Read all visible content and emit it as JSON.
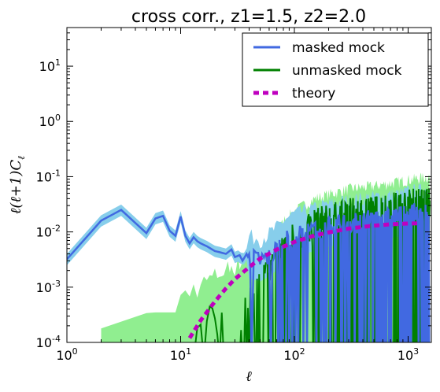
{
  "chart_data": {
    "type": "line",
    "title": "cross corr., z1=1.5, z2=2.0",
    "xlabel": "ℓ",
    "ylabel": "ℓ(ℓ+1)C",
    "ylabel_sub": "ℓ",
    "xscale": "log",
    "yscale": "log",
    "xlim": [
      1,
      1600
    ],
    "ylim": [
      0.0001,
      50
    ],
    "x_ticks": [
      {
        "value": 1,
        "base": "10",
        "exp": "0"
      },
      {
        "value": 10,
        "base": "10",
        "exp": "1"
      },
      {
        "value": 100,
        "base": "10",
        "exp": "2"
      },
      {
        "value": 1000,
        "base": "10",
        "exp": "3"
      }
    ],
    "y_ticks": [
      {
        "value": 0.0001,
        "base": "10",
        "exp": "-4"
      },
      {
        "value": 0.001,
        "base": "10",
        "exp": "-3"
      },
      {
        "value": 0.01,
        "base": "10",
        "exp": "-2"
      },
      {
        "value": 0.1,
        "base": "10",
        "exp": "-1"
      },
      {
        "value": 1,
        "base": "10",
        "exp": "0"
      },
      {
        "value": 10,
        "base": "10",
        "exp": "1"
      }
    ],
    "legend_position": "top-right",
    "series": [
      {
        "name": "masked mock",
        "color": "#4169e1",
        "band_color": "#87ceeb",
        "x": [
          1,
          2,
          3,
          4,
          5,
          6,
          7,
          8,
          9,
          10,
          11,
          12,
          13,
          14,
          15,
          17,
          20,
          22,
          25,
          28,
          30,
          33,
          35,
          38,
          40,
          45,
          50,
          60,
          70,
          80,
          100,
          150,
          200,
          300,
          500,
          800,
          1000,
          1500
        ],
        "y": [
          0.0032,
          0.016,
          0.025,
          0.0145,
          0.0095,
          0.0175,
          0.0195,
          0.0105,
          0.0085,
          0.019,
          0.0085,
          0.0062,
          0.008,
          0.0068,
          0.0062,
          0.0055,
          0.0045,
          0.0043,
          0.004,
          0.0048,
          0.0035,
          0.0038,
          0.003,
          0.004,
          0.0032,
          0.003,
          0.0028,
          0.0035,
          0.0045,
          0.006,
          0.008,
          0.01,
          0.012,
          0.014,
          0.016,
          0.018,
          0.02,
          0.022
        ]
      },
      {
        "name": "unmasked mock",
        "color": "#008000",
        "band_color": "#90ee90",
        "x": [
          10,
          11,
          12,
          13,
          14,
          15,
          17,
          20,
          25,
          30,
          35,
          40,
          50,
          60,
          70,
          80,
          100,
          150,
          200,
          300,
          500,
          800,
          1000,
          1500
        ],
        "y": [
          0.0001,
          0.0002,
          0.00015,
          0.0001,
          0.00012,
          0.0001,
          0.00018,
          0.00015,
          0.0002,
          0.0003,
          0.0002,
          0.0004,
          0.0008,
          0.0015,
          0.002,
          0.004,
          0.006,
          0.01,
          0.012,
          0.015,
          0.017,
          0.02,
          0.022,
          0.025
        ]
      },
      {
        "name": "theory",
        "color": "#bf00bf",
        "x": [
          12,
          15,
          20,
          25,
          30,
          40,
          50,
          70,
          100,
          150,
          200,
          300,
          500,
          700,
          1000,
          1200
        ],
        "y": [
          0.00012,
          0.00025,
          0.00055,
          0.00095,
          0.0014,
          0.0023,
          0.0033,
          0.0048,
          0.0066,
          0.0086,
          0.0098,
          0.0115,
          0.013,
          0.0137,
          0.0142,
          0.0143
        ]
      }
    ]
  }
}
